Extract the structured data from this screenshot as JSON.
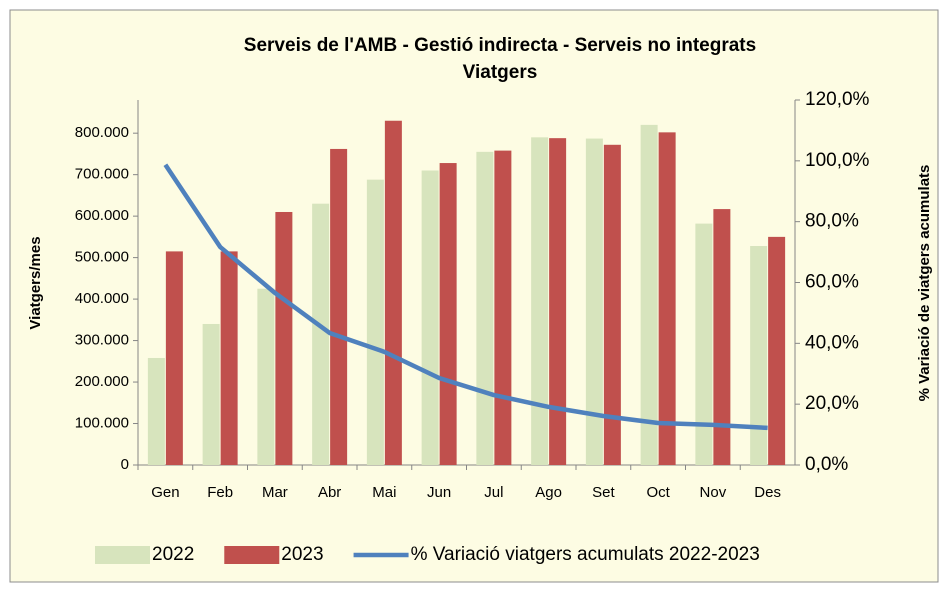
{
  "chart_data": {
    "type": "bar_line",
    "title": "Serveis de l'AMB - Gestió indirecta - Serveis no integrats",
    "subtitle": "Viatgers",
    "y_label": "Viatgers/mes",
    "y2_label": "% Variació de viatgers acumulats",
    "categories": [
      "Gen",
      "Feb",
      "Mar",
      "Abr",
      "Mai",
      "Jun",
      "Jul",
      "Ago",
      "Set",
      "Oct",
      "Nov",
      "Des"
    ],
    "series": [
      {
        "name": "2022",
        "type": "bar",
        "color": "#d7e4bd",
        "values": [
          258000,
          340000,
          425000,
          630000,
          688000,
          710000,
          755000,
          790000,
          787000,
          820000,
          582000,
          528000
        ]
      },
      {
        "name": "2023",
        "type": "bar",
        "color": "#c0504d",
        "values": [
          515000,
          515000,
          610000,
          762000,
          830000,
          728000,
          758000,
          788000,
          772000,
          802000,
          617000,
          550000
        ]
      },
      {
        "name": "% Variació viatgers acumulats 2022-2023",
        "type": "line",
        "axis": "y2",
        "color": "#4f81bd",
        "values": [
          98.7,
          71.7,
          56.6,
          43.4,
          37.2,
          28.6,
          23.0,
          19.1,
          16.1,
          13.8,
          13.2,
          12.2
        ]
      }
    ],
    "ylim": [
      0,
      880000
    ],
    "yticks": [
      0,
      {
        "value": 100000,
        "label": "100.000"
      },
      {
        "value": 200000,
        "label": "200.000"
      },
      {
        "value": 300000,
        "label": "300.000"
      },
      {
        "value": 400000,
        "label": "400.000"
      },
      {
        "value": 500000,
        "label": "500.000"
      },
      {
        "value": 600000,
        "label": "600.000"
      },
      {
        "value": 700000,
        "label": "700.000"
      },
      {
        "value": 800000,
        "label": "800.000"
      }
    ],
    "y2lim": [
      0,
      120
    ],
    "y2ticks": [
      {
        "value": 0,
        "label": "0,0%"
      },
      {
        "value": 20,
        "label": "20,0%"
      },
      {
        "value": 40,
        "label": "40,0%"
      },
      {
        "value": 60,
        "label": "60,0%"
      },
      {
        "value": 80,
        "label": "80,0%"
      },
      {
        "value": 100,
        "label": "100,0%"
      },
      {
        "value": 120,
        "label": "120,0%"
      }
    ],
    "legend": "bottom"
  }
}
